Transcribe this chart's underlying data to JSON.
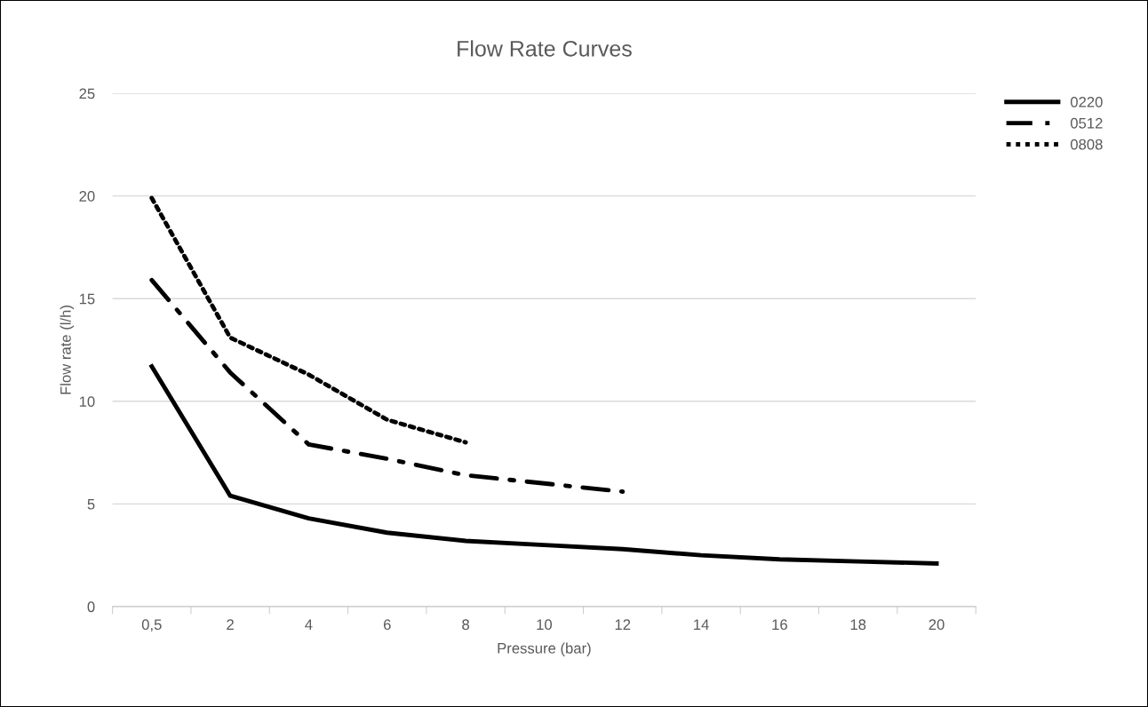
{
  "chart_data": {
    "type": "line",
    "title": "Flow Rate Curves",
    "xlabel": "Pressure (bar)",
    "ylabel": "Flow rate (l/h)",
    "categories": [
      "0,5",
      "2",
      "4",
      "6",
      "8",
      "10",
      "12",
      "14",
      "16",
      "18",
      "20"
    ],
    "series": [
      {
        "name": "0220",
        "color": "#000000",
        "line_style": "solid",
        "values": [
          11.7,
          5.4,
          4.3,
          3.6,
          3.2,
          3.0,
          2.8,
          2.5,
          2.3,
          2.2,
          2.1
        ]
      },
      {
        "name": "0512",
        "color": "#000000",
        "line_style": "dashdot",
        "values": [
          15.9,
          11.4,
          7.9,
          7.2,
          6.4,
          6.0,
          5.6,
          null,
          null,
          null,
          null
        ]
      },
      {
        "name": "0808",
        "color": "#000000",
        "line_style": "dotted",
        "values": [
          19.9,
          13.1,
          11.3,
          9.1,
          8.0,
          null,
          null,
          null,
          null,
          null,
          null
        ]
      }
    ],
    "ylim": [
      0,
      25
    ],
    "yticks": [
      0,
      5,
      10,
      15,
      20,
      25
    ],
    "grid": "y",
    "legend": "top right",
    "marker": "none"
  }
}
